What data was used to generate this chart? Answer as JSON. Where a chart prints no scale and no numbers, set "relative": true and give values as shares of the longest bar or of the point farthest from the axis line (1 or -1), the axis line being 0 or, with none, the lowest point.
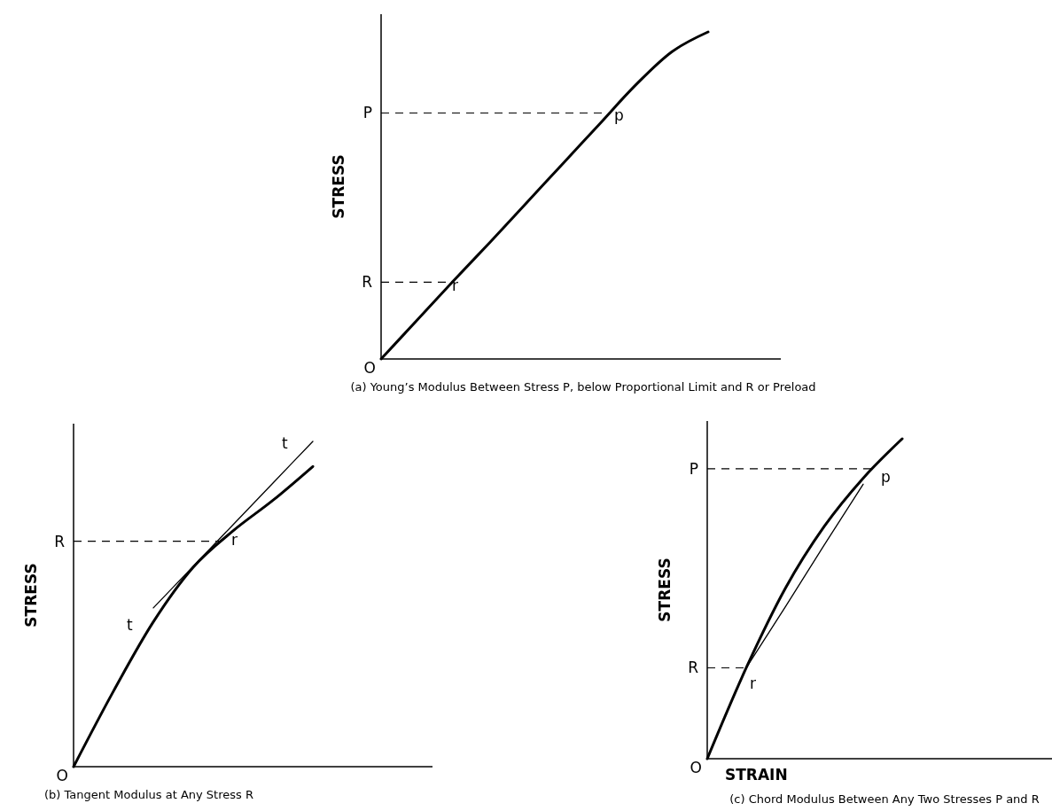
{
  "chart_data": [
    {
      "type": "line",
      "relative": true,
      "title": "(a) Young’s Modulus Between Stress P, below Proportional Limit and R or Preload",
      "ylabel": "STRESS",
      "categories": [
        null,
        null,
        null,
        null,
        null,
        null,
        null,
        null,
        null,
        null,
        null,
        null
      ],
      "series": [
        {
          "color": "#000000",
          "values": [
            0,
            0.12,
            0.24,
            0.357,
            0.477,
            0.597,
            0.717,
            0.837,
            0.939,
            1,
            null,
            null
          ]
        }
      ],
      "ref_lines": [
        {
          "axis": "y",
          "value": 0.752,
          "label": "P",
          "line_style": "dashed"
        },
        {
          "axis": "y",
          "value": 0.235,
          "label": "R",
          "line_style": "dashed"
        }
      ],
      "annotations": [
        "O",
        "p",
        "r"
      ]
    },
    {
      "type": "line",
      "relative": true,
      "title": "(b) Tangent Modulus at Any Stress R",
      "ylabel": "STRESS",
      "categories": [
        null,
        null,
        null,
        null,
        null,
        null,
        null,
        null,
        null,
        null
      ],
      "series": [
        {
          "color": "#000000",
          "values": [
            0,
            0.232,
            0.445,
            0.613,
            0.725,
            0.819,
            0.923,
            null,
            null,
            null
          ]
        },
        {
          "color": "#000000",
          "values": [
            null,
            null,
            0.488,
            0.616,
            0.744,
            0.872,
            1,
            null,
            null,
            null
          ]
        }
      ],
      "ref_lines": [
        {
          "axis": "y",
          "value": 0.693,
          "label": "R",
          "line_style": "dashed"
        }
      ],
      "annotations": [
        "O",
        "r",
        "t",
        "t"
      ]
    },
    {
      "type": "line",
      "relative": true,
      "title": "(c) Chord Modulus Between Any Two Stresses P and R",
      "ylabel": "STRESS",
      "xlabel": "STRAIN",
      "categories": [
        null,
        null,
        null,
        null,
        null,
        null,
        null,
        null,
        null,
        null
      ],
      "series": [
        {
          "color": "#000000",
          "values": [
            0,
            0.284,
            0.532,
            0.726,
            0.877,
            1,
            null,
            null,
            null,
            null
          ]
        },
        {
          "color": "#000000",
          "values": [
            null,
            0.284,
            0.474,
            0.668,
            0.858,
            null,
            null,
            null,
            null,
            null
          ]
        }
      ],
      "ref_lines": [
        {
          "axis": "y",
          "value": 0.906,
          "label": "P",
          "line_style": "dashed"
        },
        {
          "axis": "y",
          "value": 0.284,
          "label": "R",
          "line_style": "dashed"
        }
      ],
      "annotations": [
        "O",
        "p",
        "r"
      ]
    }
  ]
}
